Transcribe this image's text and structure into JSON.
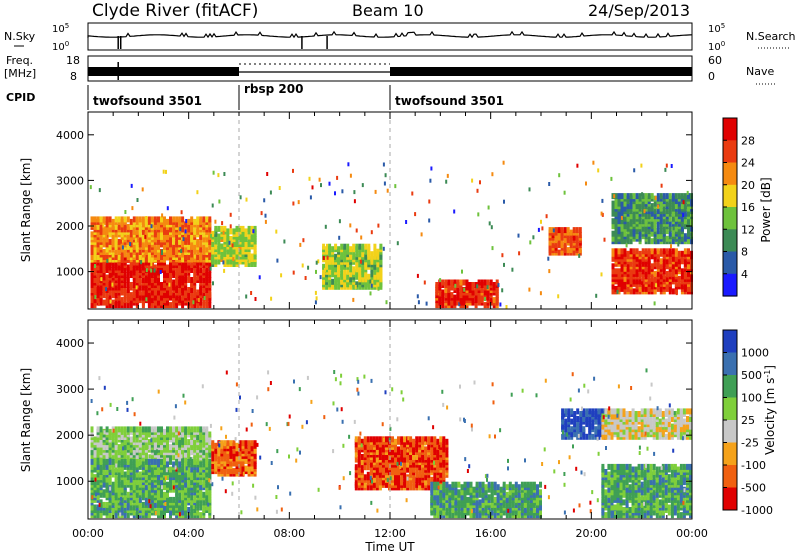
{
  "header": {
    "station": "Clyde River (fitACF)",
    "beam": "Beam 10",
    "date": "24/Sep/2013"
  },
  "top_panels": {
    "nsky_label": "N.Sky",
    "nsky_ticks": [
      "10^5",
      "10^0"
    ],
    "nsearch_label": "N.Search",
    "nsearch_ticks": [
      "10^5",
      "10^0"
    ],
    "freq_label_1": "Freq.",
    "freq_label_2": "[MHz]",
    "freq_ticks": [
      "18",
      "8"
    ],
    "nave_label": "Nave",
    "nave_ticks": [
      "60",
      "0"
    ],
    "cpid_label": "CPID",
    "cpid_segments": [
      {
        "name": "twofsound 3501",
        "start_hour": 0,
        "end_hour": 6
      },
      {
        "name": "rbsp 200",
        "start_hour": 6,
        "end_hour": 12
      },
      {
        "name": "twofsound 3501",
        "start_hour": 12,
        "end_hour": 24
      }
    ]
  },
  "x_axis": {
    "label": "Time UT",
    "tick_labels": [
      "00:00",
      "04:00",
      "08:00",
      "12:00",
      "16:00",
      "20:00",
      "00:00"
    ]
  },
  "chart_data": [
    {
      "type": "heatmap",
      "panel": "power",
      "ylabel": "Slant Range [km]",
      "y_ticks": [
        1000,
        2000,
        3000,
        4000
      ],
      "ylim": [
        180,
        4500
      ],
      "xlim_hours": [
        0,
        24
      ],
      "colorbar_label": "Power [dB]",
      "colorbar_ticks": [
        "4",
        "8",
        "12",
        "16",
        "20",
        "24",
        "28"
      ],
      "colorbar_colors": [
        "#1a1aff",
        "#2a5aa8",
        "#3c8a55",
        "#6ec23c",
        "#f2d21a",
        "#f58a10",
        "#ea3b10",
        "#e00000"
      ],
      "regions": [
        {
          "t0": 0.1,
          "t1": 4.9,
          "r0": 200,
          "r1": 1250,
          "level": 0.95
        },
        {
          "t0": 0.1,
          "t1": 4.9,
          "r0": 1200,
          "r1": 2100,
          "level": 0.72
        },
        {
          "t0": 4.9,
          "t1": 6.6,
          "r0": 1100,
          "r1": 1900,
          "level": 0.5
        },
        {
          "t0": 9.3,
          "t1": 11.6,
          "r0": 600,
          "r1": 1500,
          "level": 0.48
        },
        {
          "t0": 13.8,
          "t1": 16.3,
          "r0": 200,
          "r1": 700,
          "level": 0.92
        },
        {
          "t0": 18.3,
          "t1": 19.6,
          "r0": 1350,
          "r1": 1900,
          "level": 0.8
        },
        {
          "t0": 20.8,
          "t1": 24.0,
          "r0": 500,
          "r1": 1400,
          "level": 0.9
        },
        {
          "t0": 20.8,
          "t1": 24.0,
          "r0": 1600,
          "r1": 2600,
          "level": 0.3
        }
      ]
    },
    {
      "type": "heatmap",
      "panel": "velocity",
      "ylabel": "Slant Range [km]",
      "y_ticks": [
        1000,
        2000,
        3000,
        4000
      ],
      "ylim": [
        180,
        4500
      ],
      "xlim_hours": [
        0,
        24
      ],
      "colorbar_label": "Velocity [m s^-1]",
      "colorbar_ticks": [
        "1000",
        "500",
        "100",
        "25",
        "-25",
        "-100",
        "-500",
        "-1000"
      ],
      "colorbar_colors": [
        "#1f3fbf",
        "#3a70b0",
        "#3f9f55",
        "#7fcf3a",
        "#c8c8c8",
        "#f5a21a",
        "#f06010",
        "#e00000"
      ],
      "regions": [
        {
          "t0": 0.1,
          "t1": 4.9,
          "r0": 1400,
          "r1": 2100,
          "level": 0.55
        },
        {
          "t0": 0.1,
          "t1": 4.9,
          "r0": 200,
          "r1": 1400,
          "level": 0.68
        },
        {
          "t0": 4.9,
          "t1": 6.6,
          "r0": 1100,
          "r1": 1800,
          "level": 0.15
        },
        {
          "t0": 10.6,
          "t1": 14.2,
          "r0": 800,
          "r1": 1900,
          "level": 0.1
        },
        {
          "t0": 13.6,
          "t1": 18.0,
          "r0": 200,
          "r1": 900,
          "level": 0.72
        },
        {
          "t0": 18.8,
          "t1": 20.6,
          "r0": 1900,
          "r1": 2500,
          "level": 0.95
        },
        {
          "t0": 20.4,
          "t1": 24.0,
          "r0": 1900,
          "r1": 2500,
          "level": 0.42
        },
        {
          "t0": 20.4,
          "t1": 24.0,
          "r0": 200,
          "r1": 1300,
          "level": 0.7
        }
      ]
    }
  ]
}
